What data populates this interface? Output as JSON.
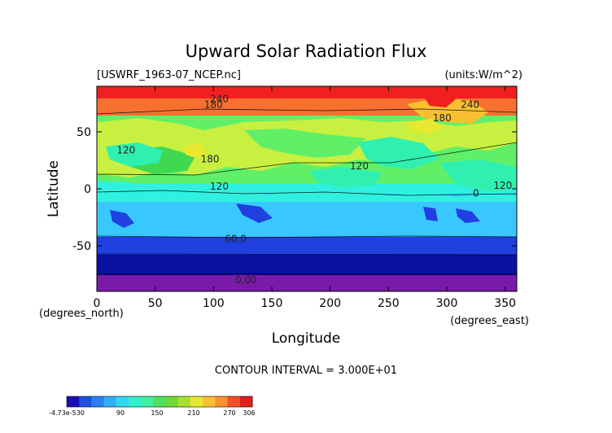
{
  "chart_data": {
    "type": "heatmap",
    "title": "Upward Solar Radiation Flux",
    "file_label": "[USWRF_1963-07_NCEP.nc]",
    "units_label": "(units:W/m^2)",
    "xlabel": "Longitude",
    "ylabel": "Latitude",
    "x_unit_label": "(degrees_east)",
    "y_unit_label": "(degrees_north)",
    "xlim": [
      0,
      360
    ],
    "ylim": [
      -90,
      90
    ],
    "x_ticks": [
      0,
      50,
      100,
      150,
      200,
      250,
      300,
      350
    ],
    "y_ticks": [
      50,
      0,
      -50
    ],
    "contour_interval_text": "CONTOUR INTERVAL = 3.000E+01",
    "contour_labels": [
      {
        "text": "240",
        "lon": 105,
        "lat": 79
      },
      {
        "text": "180",
        "lon": 100,
        "lat": 74
      },
      {
        "text": "240",
        "lon": 320,
        "lat": 74
      },
      {
        "text": "180",
        "lon": 296,
        "lat": 62
      },
      {
        "text": "120",
        "lon": 25,
        "lat": 34
      },
      {
        "text": "180",
        "lon": 97,
        "lat": 26
      },
      {
        "text": "120",
        "lon": 225,
        "lat": 20
      },
      {
        "text": "120",
        "lon": 105,
        "lat": 2
      },
      {
        "text": "120",
        "lon": 348,
        "lat": 3
      },
      {
        "text": "0",
        "lon": 325,
        "lat": -4
      },
      {
        "text": "60.0",
        "lon": 119,
        "lat": -44
      },
      {
        "text": "0.00",
        "lon": 128,
        "lat": -80
      }
    ],
    "bands": [
      {
        "lat_min": -90,
        "lat_max": -74,
        "value": 0
      },
      {
        "lat_min": -74,
        "lat_max": -54,
        "value": 30
      },
      {
        "lat_min": -54,
        "lat_max": -40,
        "value": 60
      },
      {
        "lat_min": -40,
        "lat_max": -8,
        "value": 90
      },
      {
        "lat_min": -8,
        "lat_max": 8,
        "value": 120
      },
      {
        "lat_min": 8,
        "lat_max": 40,
        "value": 150
      },
      {
        "lat_min": 40,
        "lat_max": 64,
        "value": 150
      },
      {
        "lat_min": 64,
        "lat_max": 79,
        "value": 270
      },
      {
        "lat_min": 79,
        "lat_max": 90,
        "value": 300
      }
    ],
    "colorbar": {
      "tick_labels": [
        "-4.73e-530",
        "90",
        "150",
        "210",
        "270",
        "306"
      ],
      "colors": [
        "#1a0fb4",
        "#2050e0",
        "#2a80f0",
        "#30b0f8",
        "#30d8f0",
        "#30f0d0",
        "#40f0a0",
        "#50e060",
        "#70d838",
        "#a8e030",
        "#e8e830",
        "#f8c030",
        "#f89030",
        "#f05028",
        "#e02020"
      ]
    },
    "colors": {
      "deep_purple": "#7a1aa8",
      "dark_blue": "#0a10a0",
      "blue": "#2040e0",
      "light_blue": "#38c8ff",
      "cyan": "#30f0e0",
      "aqua_green": "#30f0b0",
      "light_green": "#60f068",
      "green": "#40d850",
      "yellow_green": "#c8f040",
      "orange": "#f87030",
      "red": "#f02020"
    }
  }
}
